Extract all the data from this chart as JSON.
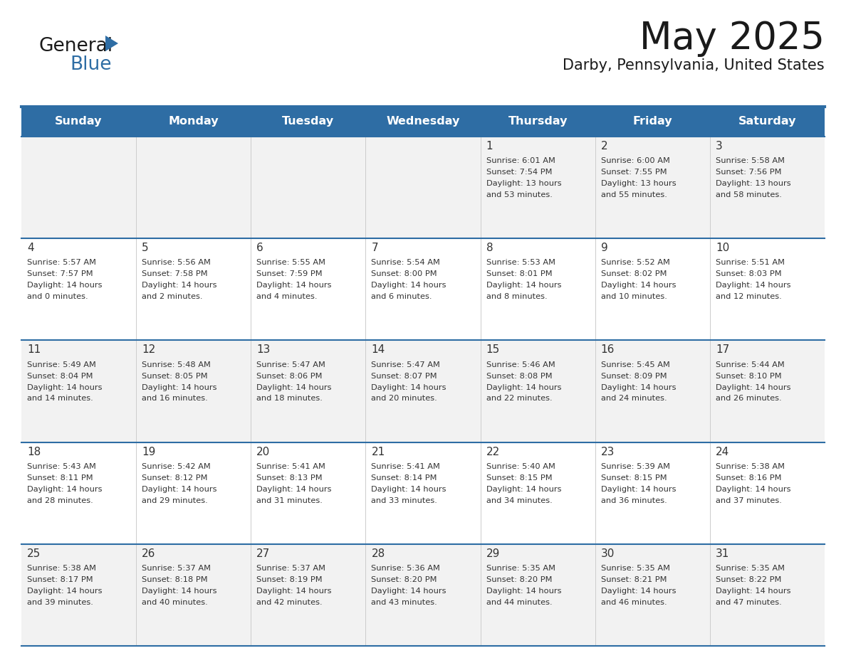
{
  "title": "May 2025",
  "subtitle": "Darby, Pennsylvania, United States",
  "header_bg_color": "#2E6DA4",
  "header_text_color": "#FFFFFF",
  "day_names": [
    "Sunday",
    "Monday",
    "Tuesday",
    "Wednesday",
    "Thursday",
    "Friday",
    "Saturday"
  ],
  "row_colors": [
    "#F2F2F2",
    "#FFFFFF",
    "#F2F2F2",
    "#FFFFFF",
    "#F2F2F2"
  ],
  "cell_text_color": "#333333",
  "grid_line_color": "#2E6DA4",
  "separator_color": "#2E6DA4",
  "days": [
    {
      "day": 1,
      "col": 4,
      "row": 0,
      "sunrise": "6:01 AM",
      "sunset": "7:54 PM",
      "daylight_h": "13 hours",
      "daylight_m": "and 53 minutes."
    },
    {
      "day": 2,
      "col": 5,
      "row": 0,
      "sunrise": "6:00 AM",
      "sunset": "7:55 PM",
      "daylight_h": "13 hours",
      "daylight_m": "and 55 minutes."
    },
    {
      "day": 3,
      "col": 6,
      "row": 0,
      "sunrise": "5:58 AM",
      "sunset": "7:56 PM",
      "daylight_h": "13 hours",
      "daylight_m": "and 58 minutes."
    },
    {
      "day": 4,
      "col": 0,
      "row": 1,
      "sunrise": "5:57 AM",
      "sunset": "7:57 PM",
      "daylight_h": "14 hours",
      "daylight_m": "and 0 minutes."
    },
    {
      "day": 5,
      "col": 1,
      "row": 1,
      "sunrise": "5:56 AM",
      "sunset": "7:58 PM",
      "daylight_h": "14 hours",
      "daylight_m": "and 2 minutes."
    },
    {
      "day": 6,
      "col": 2,
      "row": 1,
      "sunrise": "5:55 AM",
      "sunset": "7:59 PM",
      "daylight_h": "14 hours",
      "daylight_m": "and 4 minutes."
    },
    {
      "day": 7,
      "col": 3,
      "row": 1,
      "sunrise": "5:54 AM",
      "sunset": "8:00 PM",
      "daylight_h": "14 hours",
      "daylight_m": "and 6 minutes."
    },
    {
      "day": 8,
      "col": 4,
      "row": 1,
      "sunrise": "5:53 AM",
      "sunset": "8:01 PM",
      "daylight_h": "14 hours",
      "daylight_m": "and 8 minutes."
    },
    {
      "day": 9,
      "col": 5,
      "row": 1,
      "sunrise": "5:52 AM",
      "sunset": "8:02 PM",
      "daylight_h": "14 hours",
      "daylight_m": "and 10 minutes."
    },
    {
      "day": 10,
      "col": 6,
      "row": 1,
      "sunrise": "5:51 AM",
      "sunset": "8:03 PM",
      "daylight_h": "14 hours",
      "daylight_m": "and 12 minutes."
    },
    {
      "day": 11,
      "col": 0,
      "row": 2,
      "sunrise": "5:49 AM",
      "sunset": "8:04 PM",
      "daylight_h": "14 hours",
      "daylight_m": "and 14 minutes."
    },
    {
      "day": 12,
      "col": 1,
      "row": 2,
      "sunrise": "5:48 AM",
      "sunset": "8:05 PM",
      "daylight_h": "14 hours",
      "daylight_m": "and 16 minutes."
    },
    {
      "day": 13,
      "col": 2,
      "row": 2,
      "sunrise": "5:47 AM",
      "sunset": "8:06 PM",
      "daylight_h": "14 hours",
      "daylight_m": "and 18 minutes."
    },
    {
      "day": 14,
      "col": 3,
      "row": 2,
      "sunrise": "5:47 AM",
      "sunset": "8:07 PM",
      "daylight_h": "14 hours",
      "daylight_m": "and 20 minutes."
    },
    {
      "day": 15,
      "col": 4,
      "row": 2,
      "sunrise": "5:46 AM",
      "sunset": "8:08 PM",
      "daylight_h": "14 hours",
      "daylight_m": "and 22 minutes."
    },
    {
      "day": 16,
      "col": 5,
      "row": 2,
      "sunrise": "5:45 AM",
      "sunset": "8:09 PM",
      "daylight_h": "14 hours",
      "daylight_m": "and 24 minutes."
    },
    {
      "day": 17,
      "col": 6,
      "row": 2,
      "sunrise": "5:44 AM",
      "sunset": "8:10 PM",
      "daylight_h": "14 hours",
      "daylight_m": "and 26 minutes."
    },
    {
      "day": 18,
      "col": 0,
      "row": 3,
      "sunrise": "5:43 AM",
      "sunset": "8:11 PM",
      "daylight_h": "14 hours",
      "daylight_m": "and 28 minutes."
    },
    {
      "day": 19,
      "col": 1,
      "row": 3,
      "sunrise": "5:42 AM",
      "sunset": "8:12 PM",
      "daylight_h": "14 hours",
      "daylight_m": "and 29 minutes."
    },
    {
      "day": 20,
      "col": 2,
      "row": 3,
      "sunrise": "5:41 AM",
      "sunset": "8:13 PM",
      "daylight_h": "14 hours",
      "daylight_m": "and 31 minutes."
    },
    {
      "day": 21,
      "col": 3,
      "row": 3,
      "sunrise": "5:41 AM",
      "sunset": "8:14 PM",
      "daylight_h": "14 hours",
      "daylight_m": "and 33 minutes."
    },
    {
      "day": 22,
      "col": 4,
      "row": 3,
      "sunrise": "5:40 AM",
      "sunset": "8:15 PM",
      "daylight_h": "14 hours",
      "daylight_m": "and 34 minutes."
    },
    {
      "day": 23,
      "col": 5,
      "row": 3,
      "sunrise": "5:39 AM",
      "sunset": "8:15 PM",
      "daylight_h": "14 hours",
      "daylight_m": "and 36 minutes."
    },
    {
      "day": 24,
      "col": 6,
      "row": 3,
      "sunrise": "5:38 AM",
      "sunset": "8:16 PM",
      "daylight_h": "14 hours",
      "daylight_m": "and 37 minutes."
    },
    {
      "day": 25,
      "col": 0,
      "row": 4,
      "sunrise": "5:38 AM",
      "sunset": "8:17 PM",
      "daylight_h": "14 hours",
      "daylight_m": "and 39 minutes."
    },
    {
      "day": 26,
      "col": 1,
      "row": 4,
      "sunrise": "5:37 AM",
      "sunset": "8:18 PM",
      "daylight_h": "14 hours",
      "daylight_m": "and 40 minutes."
    },
    {
      "day": 27,
      "col": 2,
      "row": 4,
      "sunrise": "5:37 AM",
      "sunset": "8:19 PM",
      "daylight_h": "14 hours",
      "daylight_m": "and 42 minutes."
    },
    {
      "day": 28,
      "col": 3,
      "row": 4,
      "sunrise": "5:36 AM",
      "sunset": "8:20 PM",
      "daylight_h": "14 hours",
      "daylight_m": "and 43 minutes."
    },
    {
      "day": 29,
      "col": 4,
      "row": 4,
      "sunrise": "5:35 AM",
      "sunset": "8:20 PM",
      "daylight_h": "14 hours",
      "daylight_m": "and 44 minutes."
    },
    {
      "day": 30,
      "col": 5,
      "row": 4,
      "sunrise": "5:35 AM",
      "sunset": "8:21 PM",
      "daylight_h": "14 hours",
      "daylight_m": "and 46 minutes."
    },
    {
      "day": 31,
      "col": 6,
      "row": 4,
      "sunrise": "5:35 AM",
      "sunset": "8:22 PM",
      "daylight_h": "14 hours",
      "daylight_m": "and 47 minutes."
    }
  ]
}
